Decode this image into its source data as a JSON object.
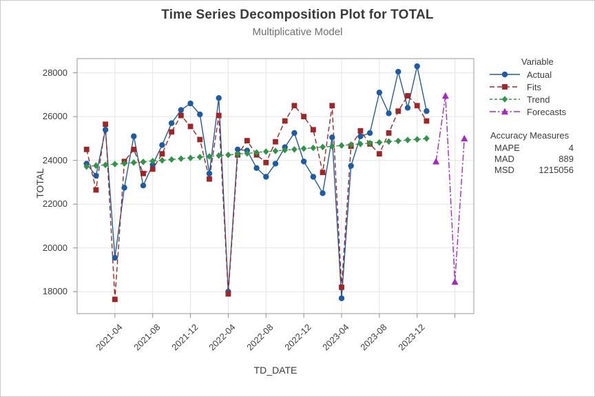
{
  "chart_data": {
    "type": "line",
    "title": "Time Series Decomposition Plot for TOTAL",
    "subtitle": "Multiplicative Model",
    "xlabel": "TD_DATE",
    "ylabel": "TOTAL",
    "x": [
      "2021-01",
      "2021-02",
      "2021-03",
      "2021-04",
      "2021-05",
      "2021-06",
      "2021-07",
      "2021-08",
      "2021-09",
      "2021-10",
      "2021-11",
      "2021-12",
      "2022-01",
      "2022-02",
      "2022-03",
      "2022-04",
      "2022-05",
      "2022-06",
      "2022-07",
      "2022-08",
      "2022-09",
      "2022-10",
      "2022-11",
      "2022-12",
      "2023-01",
      "2023-02",
      "2023-03",
      "2023-04",
      "2023-05",
      "2023-06",
      "2023-07",
      "2023-08",
      "2023-09",
      "2023-10",
      "2023-11",
      "2023-12",
      "2024-01"
    ],
    "forecast_x": [
      "2024-02",
      "2024-03",
      "2024-04",
      "2024-05"
    ],
    "series": [
      {
        "name": "Actual",
        "marker": "circle-marker",
        "dash": "solid",
        "color": "#1d5ca4",
        "start_index": 0,
        "values": [
          23850,
          23300,
          25400,
          19550,
          22750,
          25100,
          22850,
          23800,
          24700,
          25700,
          26300,
          26600,
          26100,
          23400,
          26850,
          18000,
          24500,
          24450,
          23650,
          23250,
          23850,
          24600,
          25250,
          23950,
          23250,
          22500,
          25050,
          17700,
          23750,
          25100,
          25250,
          27100,
          26150,
          28050,
          26400,
          28300,
          26250
        ]
      },
      {
        "name": "Fits",
        "marker": "square-marker",
        "dash": "dashed",
        "color": "#a02525",
        "start_index": 0,
        "values": [
          24500,
          22650,
          25650,
          17650,
          23950,
          24500,
          23400,
          23600,
          24300,
          25300,
          26050,
          25550,
          24950,
          23150,
          26050,
          17900,
          24250,
          24900,
          24250,
          23900,
          24850,
          25800,
          26500,
          26000,
          25400,
          23450,
          26500,
          18200,
          24650,
          25350,
          24750,
          24300,
          25250,
          26250,
          26950,
          26500,
          25800
        ]
      },
      {
        "name": "Trend",
        "marker": "diamond-marker",
        "dash": "shortdash",
        "color": "#2e9446",
        "start_index": 0,
        "values": [
          23720,
          23760,
          23790,
          23830,
          23860,
          23900,
          23930,
          23970,
          24000,
          24040,
          24080,
          24110,
          24150,
          24180,
          24220,
          24250,
          24290,
          24320,
          24360,
          24400,
          24430,
          24470,
          24500,
          24540,
          24570,
          24610,
          24640,
          24680,
          24720,
          24750,
          24790,
          24820,
          24860,
          24890,
          24930,
          24960,
          25000
        ]
      },
      {
        "name": "Forecasts",
        "marker": "triangle-marker",
        "dash": "dashdot",
        "color": "#a825c8",
        "start_index": 37,
        "values": [
          23950,
          26950,
          18450,
          25000
        ]
      }
    ],
    "x_ticks": [
      {
        "index": 3,
        "label": "2021-04"
      },
      {
        "index": 7,
        "label": "2021-08"
      },
      {
        "index": 11,
        "label": "2021-12"
      },
      {
        "index": 15,
        "label": "2022-04"
      },
      {
        "index": 19,
        "label": "2022-08"
      },
      {
        "index": 23,
        "label": "2022-12"
      },
      {
        "index": 27,
        "label": "2023-04"
      },
      {
        "index": 31,
        "label": "2023-08"
      },
      {
        "index": 35,
        "label": "2023-12"
      },
      {
        "index": 39,
        "label": ""
      }
    ],
    "y_ticks": [
      18000,
      20000,
      22000,
      24000,
      26000,
      28000
    ],
    "ylim": [
      17000,
      28650
    ],
    "x_index_range": [
      -1,
      41
    ],
    "grid": true,
    "legend_position": "right-outside"
  },
  "legend": {
    "header": "Variable",
    "items": [
      {
        "label": "Actual"
      },
      {
        "label": "Fits"
      },
      {
        "label": "Trend"
      },
      {
        "label": "Forecasts"
      }
    ]
  },
  "accuracy": {
    "header": "Accuracy Measures",
    "rows": [
      {
        "label": "MAPE",
        "value": "4"
      },
      {
        "label": "MAD",
        "value": "889"
      },
      {
        "label": "MSD",
        "value": "1215056"
      }
    ]
  },
  "colors": {
    "grid": "#e4e4e4",
    "plot_border": "#a8a8a8",
    "tick": "#8c8c8c",
    "frame_border": "#cbcbcb",
    "background": "#ffffff"
  }
}
